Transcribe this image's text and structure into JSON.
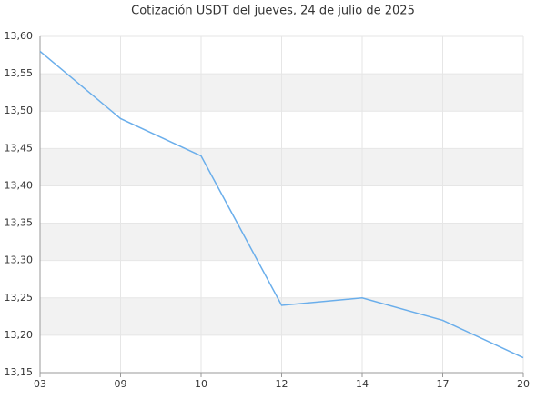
{
  "chart_data": {
    "type": "line",
    "title": "Cotización USDT del jueves, 24 de julio de 2025",
    "categories": [
      "03",
      "09",
      "10",
      "12",
      "14",
      "17",
      "20"
    ],
    "series": [
      {
        "color": "#6aaeeb",
        "values": [
          13.58,
          13.49,
          13.44,
          13.24,
          13.25,
          13.22,
          13.17
        ]
      }
    ],
    "ylim": [
      13.15,
      13.6
    ],
    "yticks": [
      {
        "value": 13.15,
        "label": "13,15"
      },
      {
        "value": 13.2,
        "label": "13,20"
      },
      {
        "value": 13.25,
        "label": "13,25"
      },
      {
        "value": 13.3,
        "label": "13,30"
      },
      {
        "value": 13.35,
        "label": "13,35"
      },
      {
        "value": 13.4,
        "label": "13,40"
      },
      {
        "value": 13.45,
        "label": "13,45"
      },
      {
        "value": 13.5,
        "label": "13,50"
      },
      {
        "value": 13.55,
        "label": "13,55"
      },
      {
        "value": 13.6,
        "label": "13,60"
      }
    ],
    "grid": true
  }
}
